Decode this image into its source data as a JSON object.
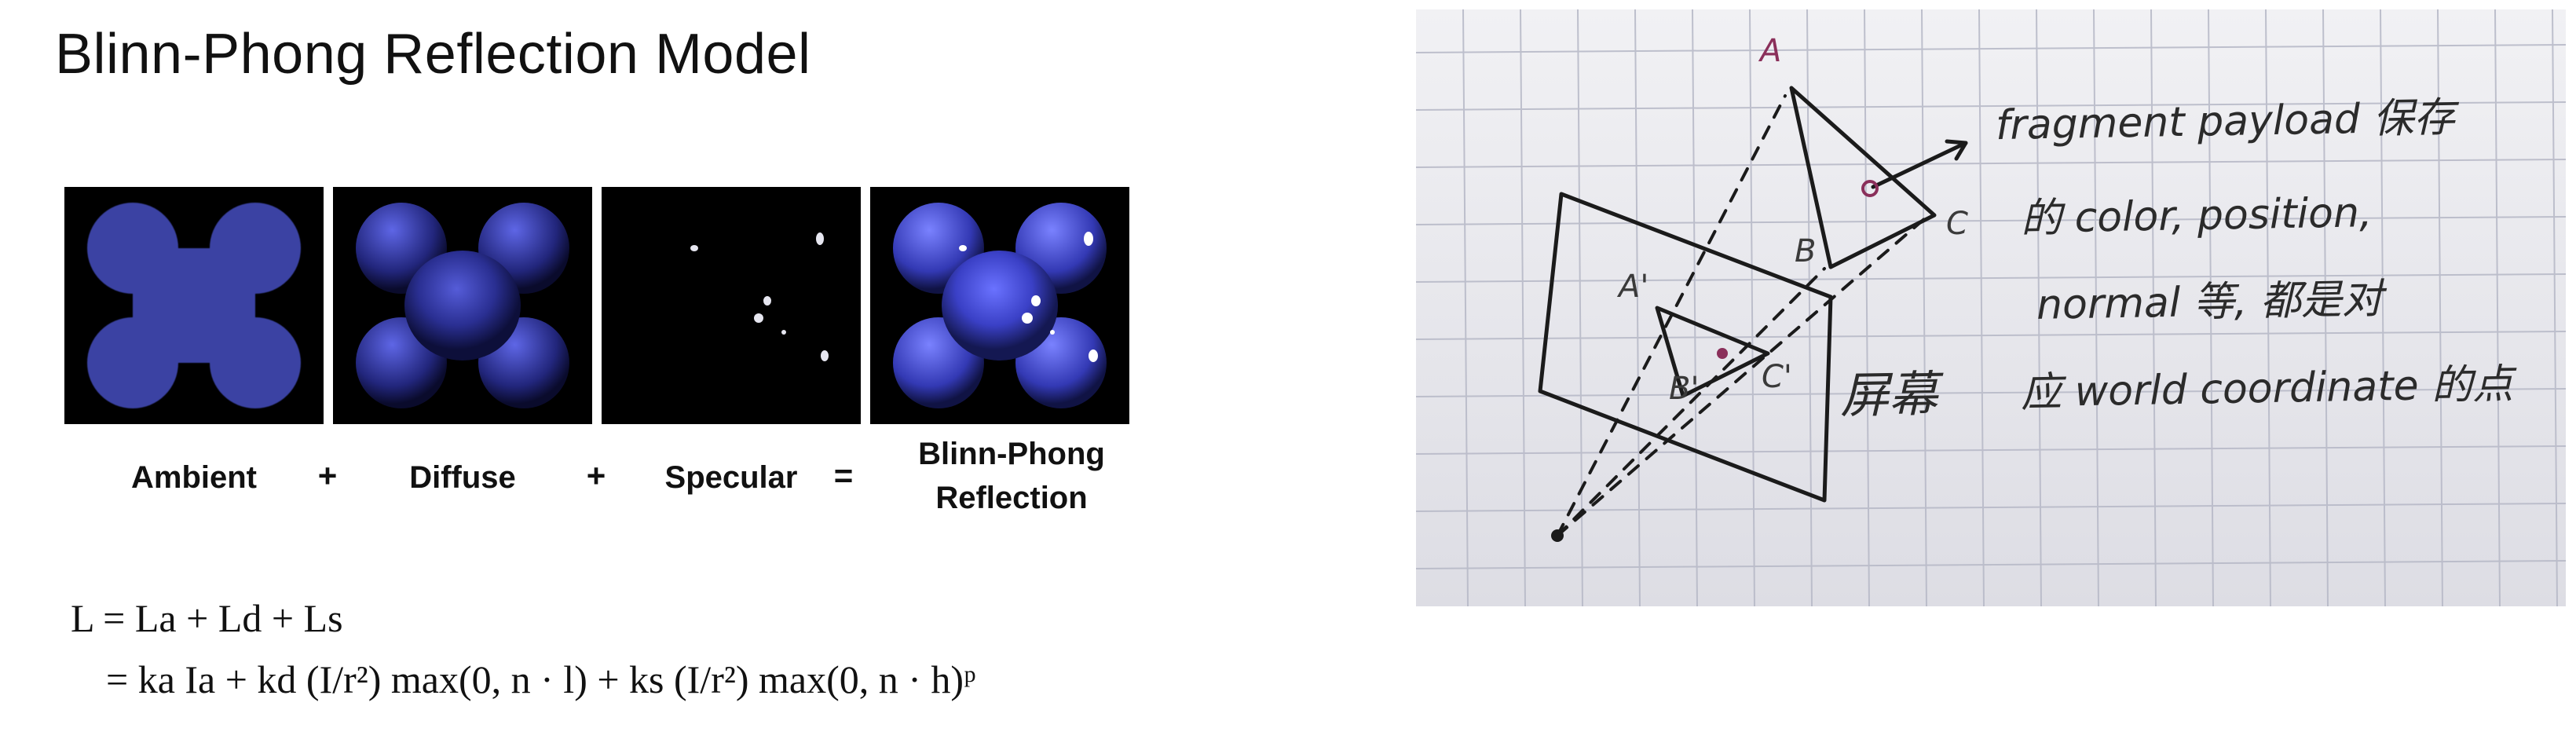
{
  "slide": {
    "title": "Blinn-Phong Reflection Model"
  },
  "terms": [
    {
      "label": "Ambient"
    },
    {
      "label": "Diffuse"
    },
    {
      "label": "Specular"
    },
    {
      "label_line_1": "Blinn-Phong",
      "label_line_2": "Reflection"
    }
  ],
  "operators": {
    "plus_1": "+",
    "plus_2": "+",
    "equals": "="
  },
  "equations": {
    "line_1": "L = La + Ld + Ls",
    "line_2": "= ka Ia + kd (I/r²) max(0, n · l) + ks (I/r²) max(0, n · h)ᵖ"
  },
  "photo_notes": {
    "line_1": "fragment payload 保存",
    "line_2": "的 color, position,",
    "line_3": "normal 等, 都是对",
    "line_4": "应 world coordinate 的点",
    "screen_label": "屏幕",
    "labels": {
      "a": "A",
      "b": "B",
      "c": "C",
      "a_prime": "A'",
      "b_prime": "B'",
      "c_prime": "C'"
    }
  },
  "colors": {
    "shape_blue": "#3b43b8",
    "dark_blue": "#1e2270",
    "panel_bg": "#000000",
    "grid_line": "#b8bac8",
    "paper": "#e9e9ed"
  }
}
